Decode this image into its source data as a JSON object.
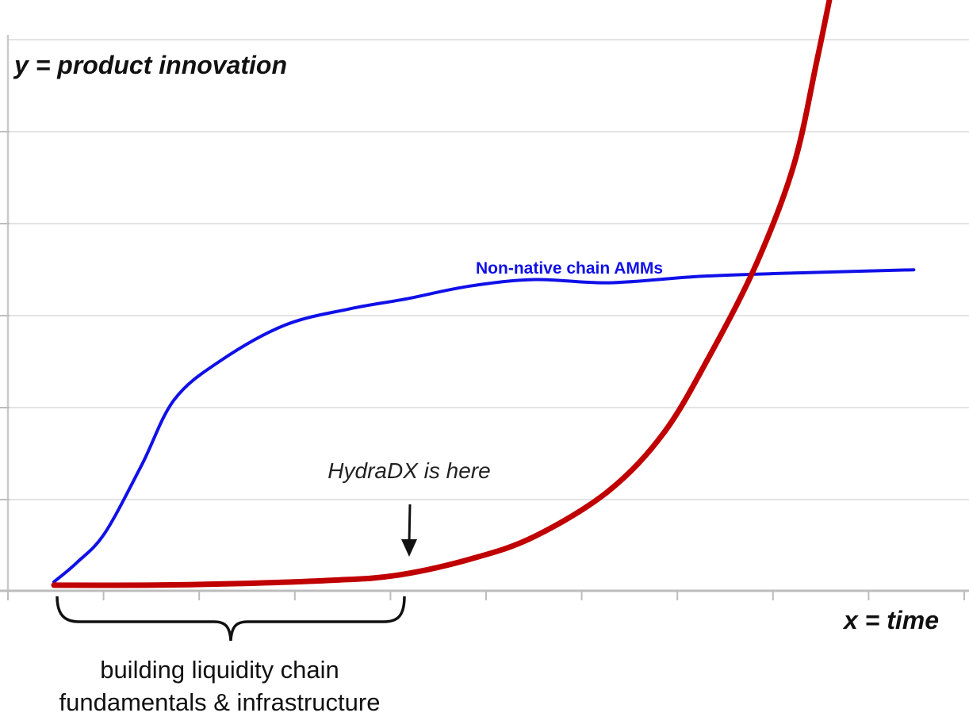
{
  "chart_data": {
    "type": "line",
    "ylabel": "y = product innovation",
    "xlabel": "x = time",
    "grid": true,
    "series": [
      {
        "name": "Non-native chain AMMs",
        "color": "#1010e8",
        "points": [
          [
            0,
            0.02
          ],
          [
            0.25,
            0.08
          ],
          [
            0.55,
            0.17
          ],
          [
            0.95,
            0.38
          ],
          [
            1.3,
            0.58
          ],
          [
            1.8,
            0.7
          ],
          [
            2.5,
            0.81
          ],
          [
            3.2,
            0.86
          ],
          [
            3.8,
            0.89
          ],
          [
            4.5,
            0.93
          ],
          [
            5.2,
            0.95
          ],
          [
            6.0,
            0.94
          ],
          [
            7.0,
            0.96
          ],
          [
            8.0,
            0.97
          ],
          [
            9.3,
            0.98
          ]
        ]
      },
      {
        "name": "",
        "color": "#c00000",
        "points": [
          [
            0,
            0.01
          ],
          [
            1.0,
            0.01
          ],
          [
            2.0,
            0.015
          ],
          [
            3.0,
            0.025
          ],
          [
            3.7,
            0.04
          ],
          [
            4.5,
            0.09
          ],
          [
            5.2,
            0.16
          ],
          [
            6.0,
            0.3
          ],
          [
            6.6,
            0.48
          ],
          [
            7.1,
            0.72
          ],
          [
            7.6,
            1.0
          ],
          [
            8.0,
            1.3
          ],
          [
            8.25,
            1.62
          ],
          [
            8.45,
            1.9
          ],
          [
            8.6,
            2.12
          ]
        ]
      }
    ],
    "annotations": [
      {
        "text": "HydraDX is here",
        "arrow_to_x": 3.7
      },
      {
        "text": "building liquidity chain\nfundamentals & infrastructure",
        "brace_from_x": 0,
        "brace_to_x": 3.7
      }
    ]
  },
  "labels": {
    "ylabel": "y = product innovation",
    "xlabel": "x = time",
    "series_blue": "Non-native chain AMMs",
    "annotation_here": "HydraDX is here",
    "brace_line1": "building liquidity chain",
    "brace_line2": "fundamentals & infrastructure"
  }
}
